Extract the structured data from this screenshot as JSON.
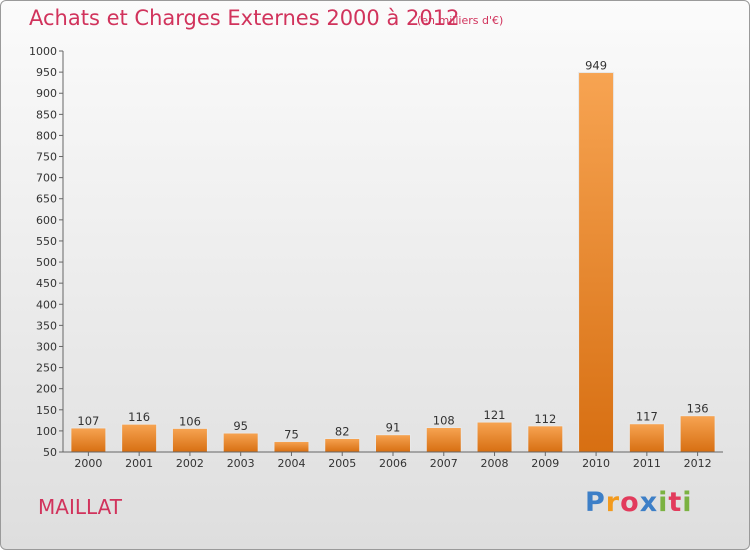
{
  "header": {
    "title": "Achats et Charges Externes 2000 à 2012",
    "subtitle": "(en milliers d'€)"
  },
  "footer": {
    "commune": "MAILLAT",
    "brand_letters": [
      "P",
      "r",
      "o",
      "x",
      "i",
      "t",
      "i"
    ],
    "brand_colors": [
      "#3d7fc7",
      "#f29a1e",
      "#e23b5c",
      "#3d7fc7",
      "#7bb241",
      "#e23b5c",
      "#7bb241"
    ]
  },
  "chart_data": {
    "type": "bar",
    "categories": [
      "2000",
      "2001",
      "2002",
      "2003",
      "2004",
      "2005",
      "2006",
      "2007",
      "2008",
      "2009",
      "2010",
      "2011",
      "2012"
    ],
    "values": [
      107,
      116,
      106,
      95,
      75,
      82,
      91,
      108,
      121,
      112,
      949,
      117,
      136
    ],
    "title": "Achats et Charges Externes 2000 à 2012",
    "xlabel": "",
    "ylabel": "",
    "ylim": [
      50,
      1000
    ],
    "yticks": [
      50,
      100,
      150,
      200,
      250,
      300,
      350,
      400,
      450,
      500,
      550,
      600,
      650,
      700,
      750,
      800,
      850,
      900,
      950,
      1000
    ],
    "grid": false,
    "bar_color": "#f0922f"
  }
}
